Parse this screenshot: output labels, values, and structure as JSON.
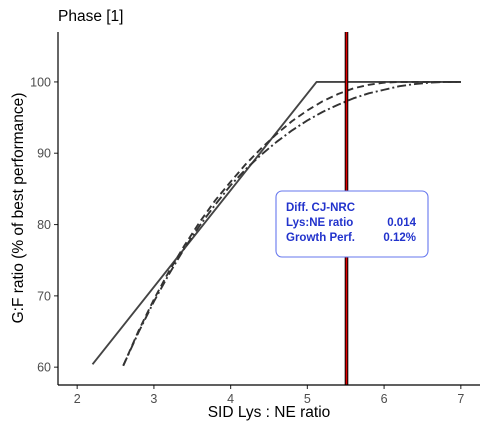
{
  "chart_data": {
    "type": "line",
    "title": "Phase [1]",
    "xlabel": "SID Lys : NE ratio",
    "ylabel": "G:F ratio (% of best performance)",
    "xlim": [
      1.75,
      7.25
    ],
    "ylim": [
      57.5,
      107.0
    ],
    "xticks": [
      2,
      3,
      4,
      5,
      6,
      7
    ],
    "yticks": [
      60,
      70,
      80,
      90,
      100
    ],
    "grid": false,
    "series": [
      {
        "style": "solid",
        "color": "#444444",
        "x": [
          2.2,
          5.12,
          7.0
        ],
        "y": [
          60.4,
          100.0,
          100.0
        ]
      },
      {
        "style": "dashed",
        "color": "#333333",
        "x": [
          2.6,
          2.8,
          3.0,
          3.2,
          3.4,
          3.6,
          3.8,
          4.0,
          4.2,
          4.4,
          4.6,
          4.8,
          5.0,
          5.2,
          5.4,
          5.6,
          5.8,
          6.0,
          6.2,
          6.4,
          6.6,
          6.8,
          7.0
        ],
        "y": [
          60.2,
          65.1,
          69.5,
          73.5,
          77.1,
          80.4,
          83.4,
          86.0,
          88.5,
          90.7,
          92.7,
          94.5,
          96.0,
          97.3,
          98.3,
          99.1,
          99.6,
          99.9,
          100.0,
          100.0,
          100.0,
          100.0,
          100.0
        ]
      },
      {
        "style": "dashdot",
        "color": "#333333",
        "x": [
          2.6,
          2.8,
          3.0,
          3.2,
          3.4,
          3.6,
          3.8,
          4.0,
          4.2,
          4.4,
          4.6,
          4.8,
          5.0,
          5.2,
          5.4,
          5.6,
          5.8,
          6.0,
          6.2,
          6.4,
          6.6,
          6.8,
          7.0
        ],
        "y": [
          60.2,
          64.9,
          69.2,
          73.1,
          76.7,
          79.9,
          82.8,
          85.5,
          87.8,
          89.8,
          91.6,
          93.2,
          94.6,
          95.8,
          96.8,
          97.7,
          98.4,
          98.9,
          99.4,
          99.7,
          99.9,
          100.0,
          100.0
        ]
      }
    ],
    "vlines": [
      {
        "x": 5.51,
        "color": "#000000"
      },
      {
        "x": 5.51,
        "color": "#dd0000"
      }
    ],
    "annotation": {
      "lines": [
        {
          "label": "Diff. CJ-NRC",
          "value": ""
        },
        {
          "label": "Lys:NE ratio",
          "value": "0.014"
        },
        {
          "label": "Growth Perf.",
          "value": "0.12%"
        }
      ],
      "border_color": "#6677ee",
      "text_color": "#2233cc"
    }
  }
}
